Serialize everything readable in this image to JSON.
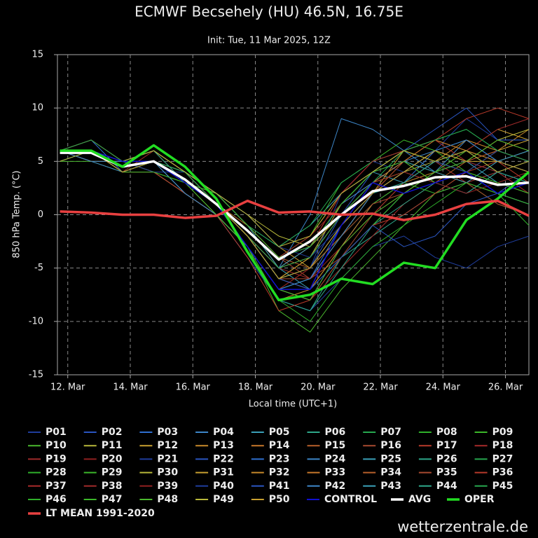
{
  "chart_data": {
    "type": "line",
    "title": "ECMWF Becsehely (HU) 46.5N, 16.75E",
    "subtitle": "Init: Tue, 11 Mar 2025, 12Z",
    "ylabel": "850 hPa Temp. (°C)",
    "xlabel": "Local time (UTC+1)",
    "watermark": "wetterzentrale.de",
    "grid": true,
    "xlim": [
      11.67,
      26.75
    ],
    "xticks": [
      {
        "value": 12,
        "label": "12. Mar"
      },
      {
        "value": 14,
        "label": "14. Mar"
      },
      {
        "value": 16,
        "label": "16. Mar"
      },
      {
        "value": 18,
        "label": "18. Mar"
      },
      {
        "value": 20,
        "label": "20. Mar"
      },
      {
        "value": 22,
        "label": "22. Mar"
      },
      {
        "value": 24,
        "label": "24. Mar"
      },
      {
        "value": 26,
        "label": "26. Mar"
      }
    ],
    "ylim": [
      -15,
      15
    ],
    "yticks": [
      -15,
      -10,
      -5,
      0,
      5,
      10,
      15
    ],
    "x": [
      11.75,
      12.75,
      13.75,
      14.75,
      15.75,
      16.75,
      17.75,
      18.75,
      19.75,
      20.75,
      21.75,
      22.75,
      23.75,
      24.75,
      25.75,
      26.75
    ],
    "series": [
      {
        "name": "P01",
        "color": "#1f3d9c",
        "line_width": 1,
        "values": [
          6,
          6,
          5,
          4,
          3,
          1,
          -2,
          -6,
          -5,
          2,
          5,
          4,
          6,
          9,
          7,
          7
        ]
      },
      {
        "name": "P02",
        "color": "#2a55c0",
        "line_width": 1,
        "values": [
          5,
          6,
          5,
          5,
          4,
          2,
          -1,
          -4,
          -3,
          1,
          3,
          5,
          4,
          3,
          2,
          4
        ]
      },
      {
        "name": "P03",
        "color": "#2f6fd0",
        "line_width": 1,
        "values": [
          6,
          7,
          4,
          5,
          2,
          0,
          -3,
          -7,
          -8,
          -3,
          1,
          3,
          6,
          5,
          4,
          5
        ]
      },
      {
        "name": "P04",
        "color": "#3d86c8",
        "line_width": 1,
        "values": [
          5,
          6,
          5,
          6,
          4,
          1,
          -2,
          -5,
          0,
          9,
          8,
          6,
          4,
          7,
          5,
          6
        ]
      },
      {
        "name": "P05",
        "color": "#3aa0b8",
        "line_width": 1,
        "values": [
          6,
          6,
          4,
          5,
          3,
          2,
          -1,
          -3,
          -1,
          2,
          4,
          3,
          5,
          4,
          2,
          1
        ]
      },
      {
        "name": "P06",
        "color": "#2ea88a",
        "line_width": 1,
        "values": [
          6,
          5,
          5,
          4,
          2,
          0,
          -4,
          -8,
          -9,
          -4,
          -2,
          0,
          2,
          3,
          4,
          3
        ]
      },
      {
        "name": "P07",
        "color": "#27a84f",
        "line_width": 1,
        "values": [
          5,
          6,
          4,
          5,
          4,
          1,
          -2,
          -6,
          -4,
          1,
          4,
          6,
          7,
          8,
          6,
          5
        ]
      },
      {
        "name": "P08",
        "color": "#2fb02a",
        "line_width": 1,
        "values": [
          6,
          6,
          5,
          6,
          3,
          1,
          -3,
          -7,
          -6,
          -2,
          2,
          5,
          4,
          3,
          2,
          -1
        ]
      },
      {
        "name": "P09",
        "color": "#3cb82a",
        "line_width": 1,
        "values": [
          6,
          7,
          5,
          5,
          4,
          2,
          -1,
          -4,
          -2,
          3,
          5,
          7,
          6,
          4,
          3,
          2
        ]
      },
      {
        "name": "P10",
        "color": "#4ab82e",
        "line_width": 1,
        "values": [
          5,
          5,
          4,
          4,
          2,
          0,
          -3,
          -9,
          -11,
          -7,
          -4,
          -1,
          2,
          3,
          1,
          0
        ]
      },
      {
        "name": "P11",
        "color": "#b8b83a",
        "line_width": 1,
        "values": [
          6,
          6,
          4,
          5,
          3,
          1,
          -2,
          -5,
          -4,
          0,
          3,
          4,
          5,
          6,
          5,
          6
        ]
      },
      {
        "name": "P12",
        "color": "#c8a030",
        "line_width": 1,
        "values": [
          6,
          6,
          5,
          6,
          4,
          2,
          0,
          -3,
          -5,
          -2,
          2,
          6,
          7,
          6,
          8,
          7
        ]
      },
      {
        "name": "P13",
        "color": "#c88a2a",
        "line_width": 1,
        "values": [
          5,
          6,
          5,
          4,
          3,
          1,
          -2,
          -6,
          -7,
          -3,
          1,
          3,
          5,
          7,
          6,
          8
        ]
      },
      {
        "name": "P14",
        "color": "#c8782a",
        "line_width": 1,
        "values": [
          6,
          6,
          4,
          5,
          3,
          1,
          -1,
          -5,
          -3,
          2,
          4,
          5,
          3,
          4,
          6,
          5
        ]
      },
      {
        "name": "P15",
        "color": "#b8602a",
        "line_width": 1,
        "values": [
          6,
          5,
          5,
          5,
          2,
          0,
          -3,
          -7,
          -5,
          -1,
          3,
          4,
          6,
          5,
          7,
          6
        ]
      },
      {
        "name": "P16",
        "color": "#a84a30",
        "line_width": 1,
        "values": [
          5,
          6,
          4,
          4,
          3,
          2,
          -1,
          -4,
          -6,
          -4,
          0,
          2,
          4,
          6,
          5,
          4
        ]
      },
      {
        "name": "P17",
        "color": "#b83a2a",
        "line_width": 1,
        "values": [
          6,
          7,
          5,
          6,
          4,
          1,
          -2,
          -6,
          -4,
          0,
          2,
          5,
          7,
          9,
          10,
          9
        ]
      },
      {
        "name": "P18",
        "color": "#a82a2a",
        "line_width": 1,
        "values": [
          6,
          6,
          4,
          5,
          3,
          1,
          -2,
          -5,
          -3,
          2,
          5,
          6,
          5,
          3,
          4,
          2
        ]
      },
      {
        "name": "P19",
        "color": "#a02a2a",
        "line_width": 1,
        "values": [
          5,
          6,
          5,
          5,
          3,
          0,
          -3,
          -7,
          -8,
          -5,
          -2,
          1,
          3,
          4,
          3,
          4
        ]
      },
      {
        "name": "P20",
        "color": "#902020",
        "line_width": 1,
        "values": [
          6,
          6,
          5,
          5,
          4,
          2,
          0,
          -3,
          -2,
          1,
          3,
          2,
          4,
          5,
          6,
          5
        ]
      },
      {
        "name": "P21",
        "color": "#1f3d9c",
        "line_width": 1,
        "values": [
          6,
          6,
          5,
          4,
          2,
          0,
          -4,
          -8,
          -9,
          -6,
          -3,
          -2,
          -4,
          -5,
          -3,
          -2
        ]
      },
      {
        "name": "P22",
        "color": "#2a55c0",
        "line_width": 1,
        "values": [
          5,
          6,
          4,
          5,
          3,
          1,
          -2,
          -6,
          -5,
          0,
          4,
          6,
          8,
          10,
          7,
          7
        ]
      },
      {
        "name": "P23",
        "color": "#2f6fd0",
        "line_width": 1,
        "values": [
          6,
          6,
          5,
          5,
          3,
          1,
          -3,
          -7,
          -6,
          -1,
          2,
          4,
          3,
          2,
          4,
          3
        ]
      },
      {
        "name": "P24",
        "color": "#3d86c8",
        "line_width": 1,
        "values": [
          6,
          5,
          4,
          5,
          3,
          2,
          -1,
          -4,
          -3,
          1,
          3,
          5,
          6,
          7,
          5,
          4
        ]
      },
      {
        "name": "P25",
        "color": "#3aa0b8",
        "line_width": 1,
        "values": [
          5,
          6,
          5,
          6,
          4,
          1,
          -2,
          -5,
          -7,
          -4,
          -1,
          2,
          4,
          5,
          3,
          2
        ]
      },
      {
        "name": "P26",
        "color": "#2ea88a",
        "line_width": 1,
        "values": [
          6,
          6,
          4,
          5,
          2,
          0,
          -3,
          -8,
          -9,
          -5,
          -1,
          1,
          3,
          2,
          4,
          5
        ]
      },
      {
        "name": "P27",
        "color": "#27a84f",
        "line_width": 1,
        "values": [
          6,
          7,
          5,
          5,
          4,
          2,
          -1,
          -3,
          -1,
          3,
          5,
          6,
          5,
          4,
          2,
          3
        ]
      },
      {
        "name": "P28",
        "color": "#2fb02a",
        "line_width": 1,
        "values": [
          5,
          6,
          5,
          4,
          3,
          1,
          -2,
          -6,
          -5,
          -2,
          1,
          3,
          2,
          4,
          3,
          2
        ]
      },
      {
        "name": "P29",
        "color": "#3cb82a",
        "line_width": 1,
        "values": [
          6,
          6,
          4,
          5,
          3,
          0,
          -3,
          -7,
          -8,
          -4,
          -1,
          2,
          4,
          6,
          5,
          6
        ]
      },
      {
        "name": "P30",
        "color": "#b8b83a",
        "line_width": 1,
        "values": [
          6,
          6,
          5,
          5,
          4,
          2,
          0,
          -2,
          -3,
          0,
          3,
          4,
          6,
          5,
          7,
          8
        ]
      },
      {
        "name": "P31",
        "color": "#c8a030",
        "line_width": 1,
        "values": [
          5,
          6,
          4,
          5,
          3,
          1,
          -2,
          -6,
          -4,
          1,
          4,
          6,
          5,
          4,
          6,
          7
        ]
      },
      {
        "name": "P32",
        "color": "#c88a2a",
        "line_width": 1,
        "values": [
          6,
          5,
          5,
          4,
          2,
          0,
          -3,
          -8,
          -7,
          -3,
          0,
          3,
          4,
          3,
          2,
          1
        ]
      },
      {
        "name": "P33",
        "color": "#c8782a",
        "line_width": 1,
        "values": [
          6,
          7,
          5,
          6,
          4,
          1,
          -2,
          -5,
          -4,
          0,
          3,
          5,
          7,
          6,
          5,
          4
        ]
      },
      {
        "name": "P34",
        "color": "#b8602a",
        "line_width": 1,
        "values": [
          5,
          6,
          4,
          5,
          3,
          2,
          -1,
          -4,
          -5,
          -2,
          2,
          4,
          3,
          5,
          6,
          5
        ]
      },
      {
        "name": "P35",
        "color": "#a84a30",
        "line_width": 1,
        "values": [
          6,
          6,
          5,
          5,
          3,
          1,
          -2,
          -6,
          -6,
          -2,
          1,
          2,
          4,
          3,
          1,
          0
        ]
      },
      {
        "name": "P36",
        "color": "#b83a2a",
        "line_width": 1,
        "values": [
          6,
          6,
          4,
          4,
          2,
          0,
          -4,
          -9,
          -8,
          -4,
          -1,
          0,
          2,
          4,
          5,
          3
        ]
      },
      {
        "name": "P37",
        "color": "#a82a2a",
        "line_width": 1,
        "values": [
          5,
          6,
          5,
          5,
          4,
          2,
          -1,
          -4,
          -2,
          2,
          5,
          6,
          7,
          5,
          4,
          5
        ]
      },
      {
        "name": "P38",
        "color": "#a02a2a",
        "line_width": 1,
        "values": [
          6,
          6,
          4,
          6,
          3,
          1,
          -2,
          -5,
          -6,
          -3,
          0,
          3,
          5,
          6,
          8,
          9
        ]
      },
      {
        "name": "P39",
        "color": "#902020",
        "line_width": 1,
        "values": [
          6,
          7,
          5,
          5,
          3,
          1,
          -3,
          -7,
          -5,
          -1,
          3,
          4,
          3,
          2,
          3,
          2
        ]
      },
      {
        "name": "P40",
        "color": "#1f3d9c",
        "line_width": 1,
        "values": [
          5,
          6,
          5,
          4,
          4,
          2,
          0,
          -3,
          -4,
          -1,
          2,
          3,
          5,
          4,
          6,
          5
        ]
      },
      {
        "name": "P41",
        "color": "#2a55c0",
        "line_width": 1,
        "values": [
          6,
          6,
          4,
          5,
          3,
          1,
          -2,
          -6,
          -7,
          -4,
          -1,
          -3,
          -2,
          1,
          2,
          1
        ]
      },
      {
        "name": "P42",
        "color": "#3d86c8",
        "line_width": 1,
        "values": [
          6,
          5,
          5,
          5,
          2,
          0,
          -3,
          -7,
          -6,
          -2,
          2,
          4,
          6,
          7,
          5,
          6
        ]
      },
      {
        "name": "P43",
        "color": "#3aa0b8",
        "line_width": 1,
        "values": [
          5,
          6,
          4,
          5,
          4,
          2,
          -1,
          -5,
          -3,
          1,
          4,
          5,
          4,
          3,
          5,
          4
        ]
      },
      {
        "name": "P44",
        "color": "#2ea88a",
        "line_width": 1,
        "values": [
          6,
          6,
          5,
          6,
          3,
          1,
          -2,
          -6,
          -5,
          -1,
          2,
          3,
          5,
          6,
          4,
          3
        ]
      },
      {
        "name": "P45",
        "color": "#27a84f",
        "line_width": 1,
        "values": [
          6,
          7,
          5,
          5,
          4,
          1,
          -2,
          -5,
          -4,
          0,
          3,
          6,
          7,
          8,
          6,
          5
        ]
      },
      {
        "name": "P46",
        "color": "#2fb02a",
        "line_width": 1,
        "values": [
          5,
          6,
          4,
          4,
          3,
          1,
          -3,
          -8,
          -10,
          -6,
          -3,
          -1,
          1,
          3,
          2,
          1
        ]
      },
      {
        "name": "P47",
        "color": "#3cb82a",
        "line_width": 1,
        "values": [
          6,
          6,
          5,
          5,
          3,
          2,
          -1,
          -4,
          -3,
          1,
          4,
          5,
          3,
          4,
          3,
          2
        ]
      },
      {
        "name": "P48",
        "color": "#4ab82e",
        "line_width": 1,
        "values": [
          6,
          6,
          4,
          5,
          3,
          0,
          -3,
          -7,
          -8,
          -3,
          0,
          2,
          4,
          5,
          7,
          6
        ]
      },
      {
        "name": "P49",
        "color": "#b8b83a",
        "line_width": 1,
        "values": [
          5,
          6,
          5,
          6,
          4,
          2,
          0,
          -3,
          -2,
          2,
          4,
          6,
          5,
          6,
          4,
          5
        ]
      },
      {
        "name": "P50",
        "color": "#c8a030",
        "line_width": 1,
        "values": [
          6,
          6,
          4,
          5,
          3,
          1,
          -2,
          -6,
          -5,
          -1,
          2,
          4,
          6,
          5,
          5,
          4
        ]
      },
      {
        "name": "CONTROL",
        "color": "#1010d0",
        "line_width": 1.5,
        "values": [
          6,
          6,
          5,
          5,
          3,
          1,
          -3,
          -7,
          -7,
          -1,
          3,
          2,
          3,
          4,
          2,
          3
        ]
      },
      {
        "name": "AVG",
        "color": "#ffffff",
        "line_width": 3.5,
        "values": [
          5.8,
          5.8,
          4.5,
          5.0,
          3.3,
          1.0,
          -1.5,
          -4.2,
          -2.5,
          0.0,
          2.2,
          2.7,
          3.5,
          3.6,
          2.8,
          3.0
        ]
      },
      {
        "name": "OPER",
        "color": "#22dd22",
        "line_width": 3.5,
        "values": [
          6.0,
          6.0,
          4.5,
          6.5,
          4.5,
          1.5,
          -3.5,
          -8.0,
          -7.5,
          -6.0,
          -6.5,
          -4.5,
          -5.0,
          -0.5,
          1.5,
          4.0
        ]
      },
      {
        "name": "LT MEAN 1991-2020",
        "color": "#e84040",
        "line_width": 3.5,
        "values": [
          0.3,
          0.2,
          0.0,
          0.0,
          -0.3,
          -0.1,
          1.3,
          0.2,
          0.3,
          0.0,
          0.1,
          -0.5,
          0.0,
          1.0,
          1.3,
          -0.1
        ]
      }
    ]
  }
}
